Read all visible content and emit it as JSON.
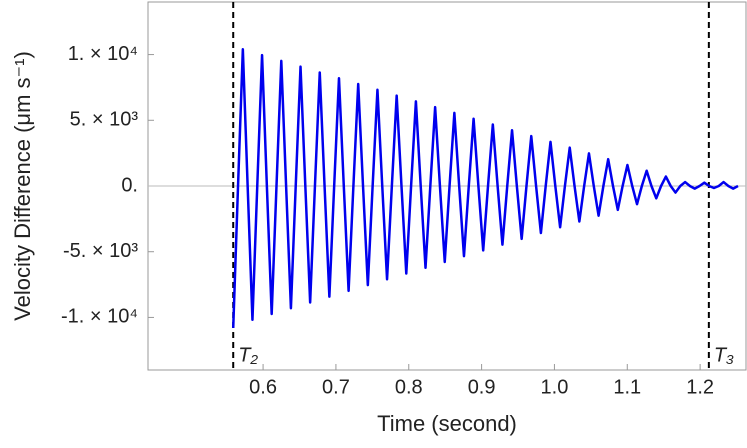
{
  "chart_data": {
    "type": "line",
    "xlabel": "Time (second)",
    "ylabel": "Velocity Difference (μm s⁻¹)",
    "color": "#0000ee",
    "x": [
      0.559,
      0.5656,
      0.5722,
      0.5788,
      0.5854,
      0.592,
      0.5986,
      0.6052,
      0.6118,
      0.6184,
      0.625,
      0.6316,
      0.6382,
      0.6448,
      0.6514,
      0.658,
      0.6646,
      0.6712,
      0.6778,
      0.6844,
      0.691,
      0.6976,
      0.7042,
      0.7108,
      0.7174,
      0.724,
      0.7306,
      0.7372,
      0.7438,
      0.7504,
      0.757,
      0.7636,
      0.7702,
      0.7768,
      0.7834,
      0.79,
      0.7966,
      0.8032,
      0.8098,
      0.8164,
      0.823,
      0.8296,
      0.8362,
      0.8428,
      0.8494,
      0.856,
      0.8626,
      0.8692,
      0.8758,
      0.8824,
      0.889,
      0.8956,
      0.9022,
      0.9088,
      0.9154,
      0.922,
      0.9286,
      0.9352,
      0.9418,
      0.9484,
      0.955,
      0.9616,
      0.9682,
      0.9748,
      0.9814,
      0.988,
      0.9946,
      1.0012,
      1.0078,
      1.0144,
      1.021,
      1.0276,
      1.0342,
      1.0408,
      1.0474,
      1.054,
      1.0606,
      1.0672,
      1.0738,
      1.0804,
      1.087,
      1.0936,
      1.1002,
      1.1068,
      1.1134,
      1.12,
      1.1266,
      1.1332,
      1.1398,
      1.1464,
      1.153,
      1.1596,
      1.1662,
      1.1728,
      1.1794,
      1.186,
      1.1926,
      1.1992,
      1.2058,
      1.2124,
      1.219,
      1.2256,
      1.2322,
      1.2388,
      1.2454,
      1.252
    ],
    "values": [
      -10800,
      0,
      10400,
      0,
      -10180,
      0,
      9960,
      0,
      -9740,
      0,
      9520,
      0,
      -9300,
      0,
      9080,
      0,
      -8860,
      0,
      8640,
      0,
      -8420,
      0,
      8200,
      0,
      -7980,
      0,
      7760,
      0,
      -7540,
      0,
      7320,
      0,
      -7100,
      0,
      6880,
      0,
      -6660,
      0,
      6440,
      0,
      -6220,
      0,
      6000,
      0,
      -5780,
      0,
      5560,
      0,
      -5340,
      0,
      5120,
      0,
      -4900,
      0,
      4680,
      0,
      -4460,
      0,
      4240,
      0,
      -4020,
      0,
      3800,
      0,
      -3580,
      0,
      3360,
      0,
      -3140,
      0,
      2920,
      0,
      -2700,
      0,
      2480,
      0,
      -2260,
      0,
      2040,
      0,
      -1820,
      0,
      1600,
      0,
      -1380,
      0,
      1160,
      0,
      -940,
      0,
      720,
      0,
      -500,
      0,
      300,
      0,
      -200,
      0,
      250,
      0,
      -150,
      0,
      300,
      0,
      -200,
      0
    ],
    "xlim": [
      0.442,
      1.263
    ],
    "ylim": [
      -14000,
      14000
    ],
    "xticks": [
      0.6,
      0.7,
      0.8,
      0.9,
      {
        "value": 1,
        "label": "1.0"
      },
      1.1,
      1.2
    ],
    "yticks": [
      {
        "value": -10000,
        "label": "-1. × 10⁴"
      },
      {
        "value": -5000,
        "label": "-5. × 10³"
      },
      {
        "value": 0,
        "label": "0."
      },
      {
        "value": 5000,
        "label": "5. × 10³"
      },
      {
        "value": 10000,
        "label": "1. × 10⁴"
      }
    ],
    "vlines": [
      {
        "x": 0.559,
        "label": "T₂"
      },
      {
        "x": 1.212,
        "label": "T₃"
      }
    ]
  }
}
